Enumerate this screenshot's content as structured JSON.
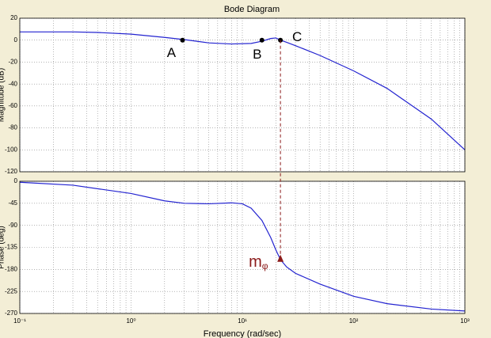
{
  "chart_data": [
    {
      "type": "line",
      "title": "Bode Diagram",
      "ylabel": "Magnitude (dB)",
      "log_x": true,
      "grid": true,
      "xlim": [
        0.1,
        1000
      ],
      "xticks": [
        0.1,
        1,
        10,
        100,
        1000
      ],
      "ylim": [
        -120,
        20
      ],
      "yticks": [
        20,
        0,
        -20,
        -40,
        -60,
        -80,
        -100,
        -120
      ],
      "series": [
        {
          "color": "#2323d0",
          "x": [
            0.1,
            0.3,
            0.5,
            1,
            2,
            3,
            5,
            8,
            12,
            15,
            18,
            20,
            22,
            25,
            30,
            50,
            100,
            200,
            500,
            1000
          ],
          "values": [
            7.5,
            7.5,
            7,
            5.5,
            2.5,
            0.5,
            -2.5,
            -3.5,
            -3,
            -1,
            1.5,
            2,
            0,
            -2,
            -5,
            -14,
            -28,
            -44,
            -72,
            -100
          ]
        }
      ],
      "points": [
        {
          "label": "A",
          "x": 2.9,
          "y": 0
        },
        {
          "label": "B",
          "x": 15,
          "y": 0
        },
        {
          "label": "C",
          "x": 22,
          "y": 0
        }
      ]
    },
    {
      "type": "line",
      "ylabel": "Phase (deg)",
      "xlabel": "Frequency  (rad/sec)",
      "log_x": true,
      "grid": true,
      "xlim": [
        0.1,
        1000
      ],
      "xticks": [
        {
          "value": 0.1,
          "label": "10⁻¹"
        },
        {
          "value": 1,
          "label": "10⁰"
        },
        {
          "value": 10,
          "label": "10¹"
        },
        {
          "value": 100,
          "label": "10²"
        },
        {
          "value": 1000,
          "label": "10³"
        }
      ],
      "ylim": [
        -270,
        0
      ],
      "yticks": [
        0,
        -45,
        -90,
        -135,
        -180,
        -225,
        -270
      ],
      "series": [
        {
          "color": "#2323d0",
          "x": [
            0.1,
            0.3,
            1,
            2,
            3,
            5,
            8,
            10,
            12,
            15,
            18,
            20,
            22,
            25,
            30,
            50,
            100,
            200,
            500,
            1000
          ],
          "values": [
            -2,
            -8,
            -25,
            -40,
            -45,
            -46,
            -44,
            -46,
            -55,
            -80,
            -115,
            -140,
            -160,
            -175,
            -188,
            -210,
            -235,
            -250,
            -261,
            -265
          ]
        }
      ],
      "margin_marker": {
        "x": 22,
        "y": -150,
        "label": "m",
        "subscript": "φ",
        "color": "#8b1a1a"
      }
    }
  ]
}
